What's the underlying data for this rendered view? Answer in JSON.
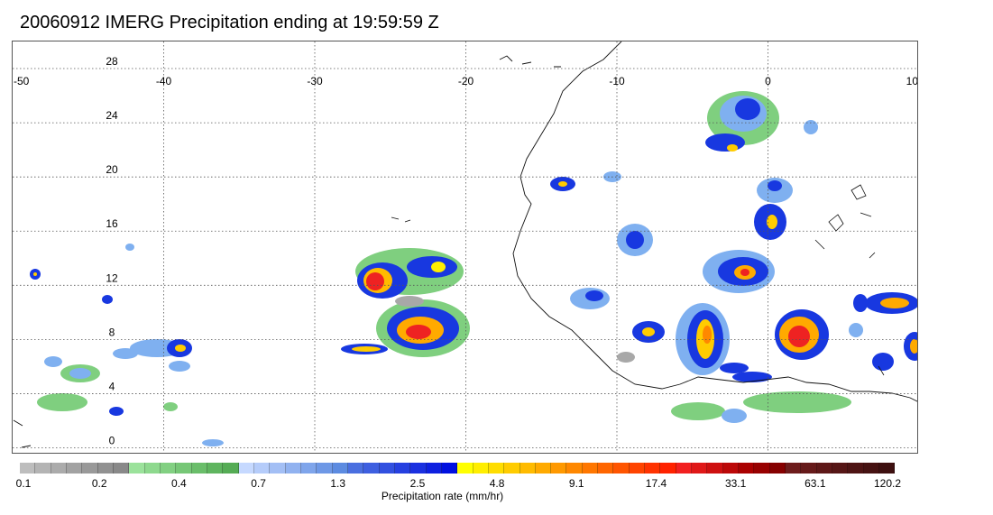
{
  "title": "20060912 IMERG Precipitation ending at 19:59:59 Z",
  "map": {
    "lon_range": [
      -50,
      10
    ],
    "lat_range": [
      -0.5,
      30
    ],
    "lon_labels": [
      "-50",
      "-40",
      "-30",
      "-20",
      "-10",
      "0",
      "10"
    ],
    "lat_labels": [
      "28",
      "24",
      "20",
      "16",
      "12",
      "8",
      "4",
      "0"
    ],
    "gridlines": true
  },
  "colorbar": {
    "label": "Precipitation rate (mm/hr)",
    "tick_labels": [
      "0.1",
      "0.2",
      "0.4",
      "0.7",
      "1.3",
      "2.5",
      "4.8",
      "9.1",
      "17.4",
      "33.1",
      "63.1",
      "120.2"
    ],
    "colors": [
      "#bdbdbd",
      "#b4b4b4",
      "#ababab",
      "#a2a2a2",
      "#999999",
      "#919191",
      "#898989",
      "#9be29b",
      "#8ed98e",
      "#82d082",
      "#76c776",
      "#6abe6a",
      "#5fb55f",
      "#55ac55",
      "#c6d9ff",
      "#b5ccfa",
      "#a3bff5",
      "#91b2f0",
      "#7fa5eb",
      "#6e98e6",
      "#5c8be1",
      "#4a6fe0",
      "#3e5fe0",
      "#3250e0",
      "#2640e0",
      "#1a30e0",
      "#0e20e0",
      "#0010e0",
      "#ffff00",
      "#ffee00",
      "#ffdd00",
      "#ffcc00",
      "#ffbb00",
      "#ffaa00",
      "#ff9900",
      "#ff8800",
      "#ff7700",
      "#ff6600",
      "#ff5500",
      "#ff4400",
      "#ff3300",
      "#ff2200",
      "#f22020",
      "#e01818",
      "#ce1010",
      "#bc0808",
      "#aa0000",
      "#980000",
      "#860000",
      "#6e1c1c",
      "#661a1a",
      "#5e1818",
      "#561616",
      "#4e1414",
      "#461212",
      "#3e1010"
    ]
  },
  "colors": {
    "gray": "#a8a8a8",
    "green": "#7fcf7f",
    "lightblue": "#7fb0f0",
    "blue": "#1838e0",
    "yellow": "#ffee00",
    "orange": "#ff9900",
    "red": "#ee2222"
  }
}
